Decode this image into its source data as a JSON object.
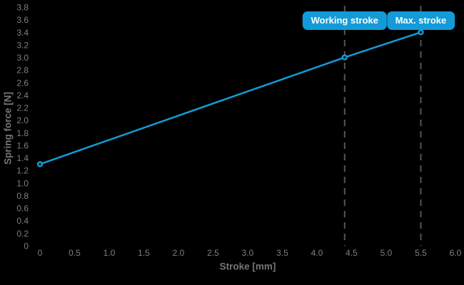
{
  "colors": {
    "background": "#000000",
    "accent_blue": "#129bd8",
    "tick_text": "#7f7f7f",
    "axis_title_text": "#767676",
    "dashed_line": "#555555",
    "marker_center": "#151515",
    "annotation_text": "#ffffff"
  },
  "chart_data": {
    "type": "line",
    "title": "",
    "xlabel": "Stroke [mm]",
    "ylabel": "Spring force [N]",
    "xlim": [
      0,
      6.0
    ],
    "ylim": [
      0,
      3.8
    ],
    "xticks": [
      "0",
      "0.5",
      "1.0",
      "1.5",
      "2.0",
      "2.5",
      "3.0",
      "3.5",
      "4.0",
      "4.5",
      "5.0",
      "5.5",
      "6.0"
    ],
    "yticks": [
      "0",
      "0.2",
      "0.4",
      "0.6",
      "0.8",
      "1.0",
      "1.2",
      "1.4",
      "1.6",
      "1.8",
      "2.0",
      "2.2",
      "2.4",
      "2.6",
      "2.8",
      "3.0",
      "3.2",
      "3.4",
      "3.6",
      "3.8"
    ],
    "grid": false,
    "legend": "none",
    "series": [
      {
        "name": "Spring force",
        "color": "#129bd8",
        "marker": "donut-circle",
        "points": [
          {
            "x": 0,
            "y": 1.3
          },
          {
            "x": 4.4,
            "y": 3.0
          },
          {
            "x": 5.5,
            "y": 3.4
          }
        ]
      }
    ],
    "annotations": [
      {
        "label": "Working stroke",
        "x": 4.4,
        "y_at_line": 3.0,
        "line": "dashed-vertical"
      },
      {
        "label": "Max. stroke",
        "x": 5.5,
        "y_at_line": 3.4,
        "line": "dashed-vertical"
      }
    ]
  }
}
